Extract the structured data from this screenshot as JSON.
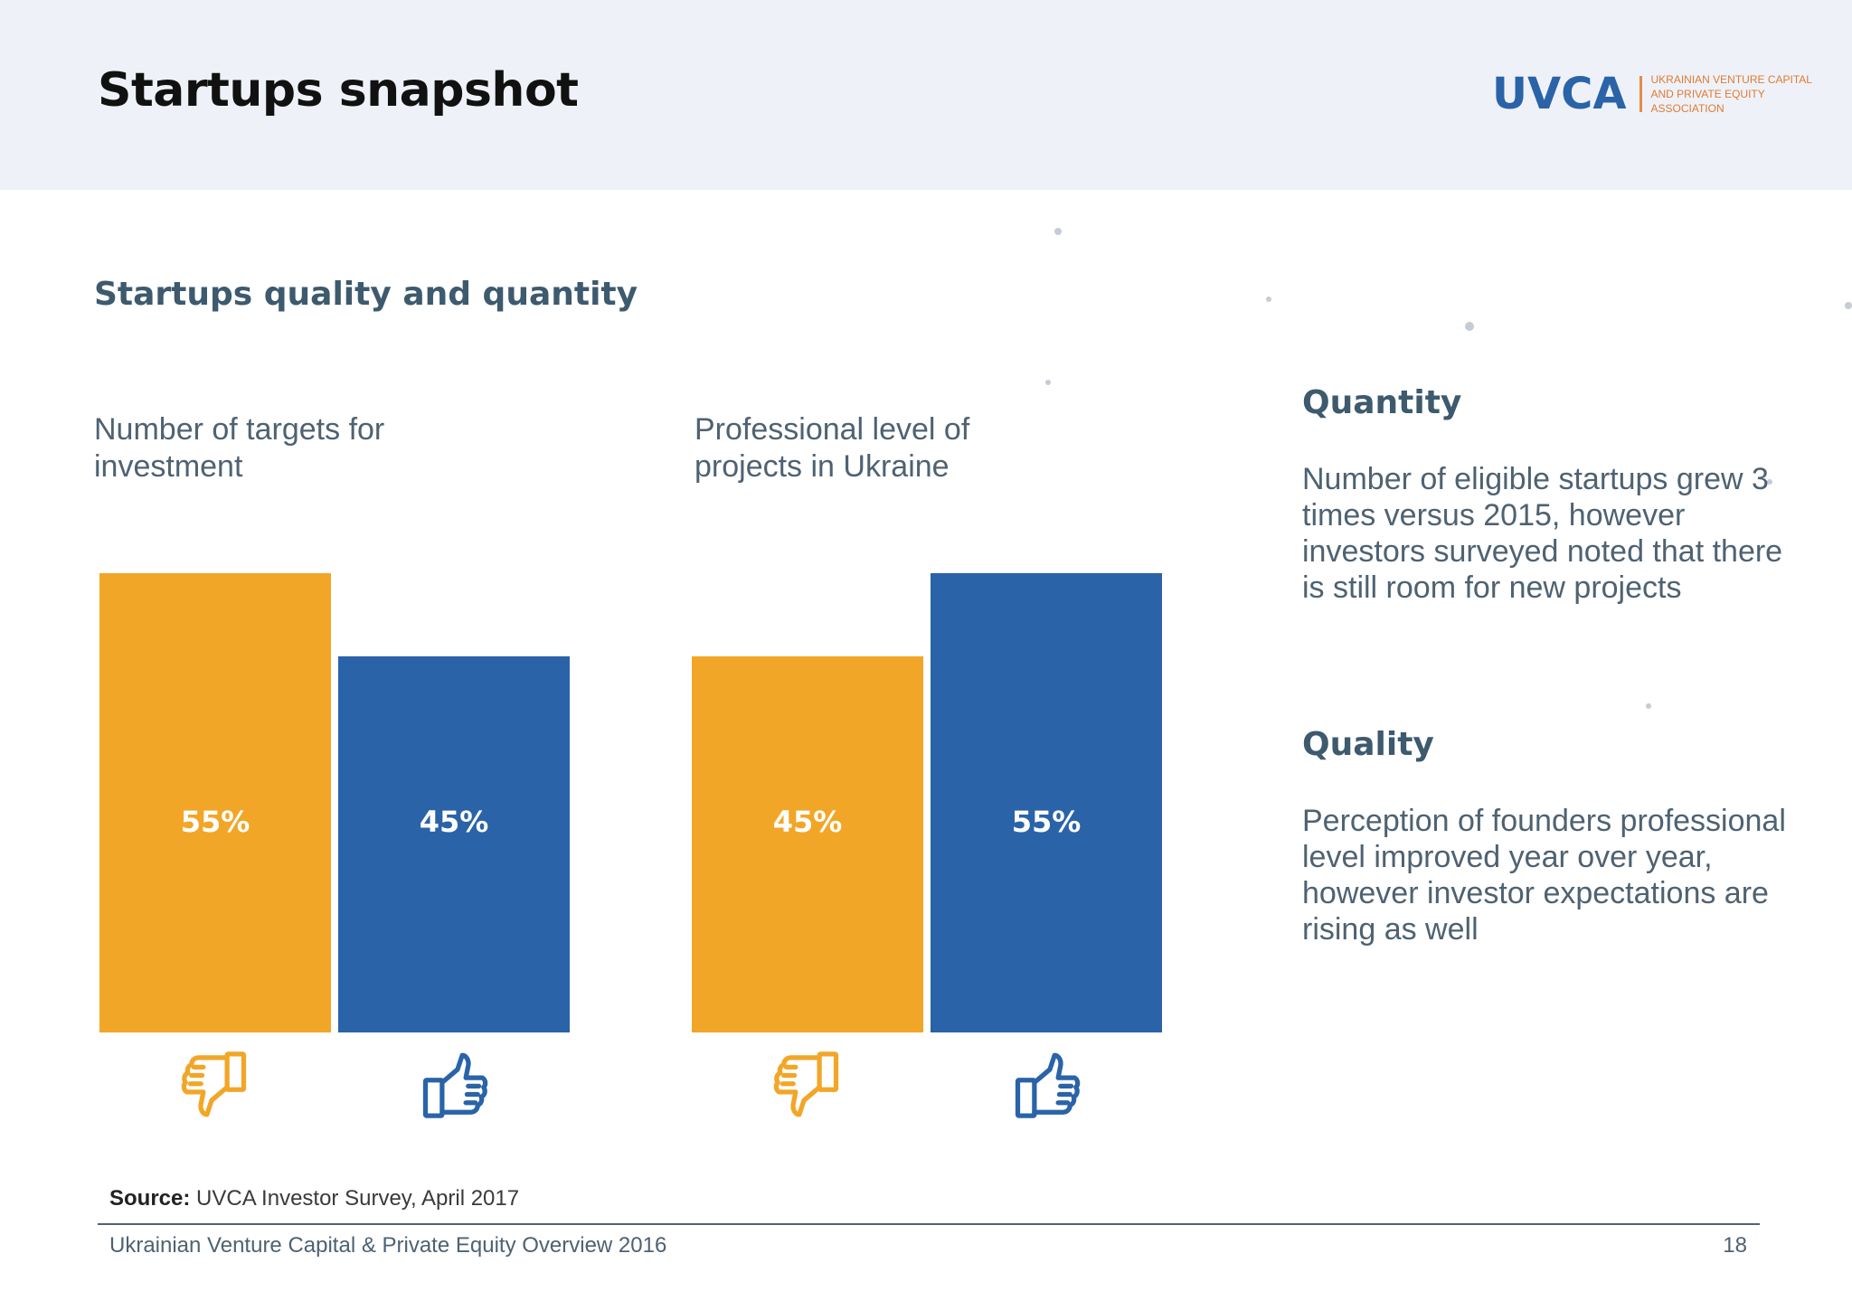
{
  "header": {
    "title": "Startups snapshot",
    "logo_text": "UVCA",
    "logo_subtitle": "UKRAINIAN VENTURE CAPITAL AND PRIVATE EQUITY ASSOCIATION"
  },
  "subtitle": "Startups quality and quantity",
  "colors": {
    "negative": "#f2a628",
    "positive": "#2a63a8"
  },
  "chart_data": [
    {
      "type": "bar",
      "title": "Number of targets for investment",
      "categories": [
        "thumbs-down",
        "thumbs-up"
      ],
      "values": [
        55,
        45
      ],
      "value_labels": [
        "55%",
        "45%"
      ],
      "ylim": [
        0,
        55
      ]
    },
    {
      "type": "bar",
      "title": "Professional level of projects in Ukraine",
      "categories": [
        "thumbs-down",
        "thumbs-up"
      ],
      "values": [
        45,
        55
      ],
      "value_labels": [
        "45%",
        "55%"
      ],
      "ylim": [
        0,
        55
      ]
    }
  ],
  "side": {
    "quantity_heading": "Quantity",
    "quantity_text": "Number of eligible startups grew 3 times versus 2015, however investors surveyed noted that there is still  room for new projects",
    "quality_heading": "Quality",
    "quality_text": "Perception of founders professional level improved year over year, however investor expectations are rising as well"
  },
  "footer": {
    "source_label": "Source:",
    "source_text": "UVCA Investor Survey, April 2017",
    "report_title": "Ukrainian Venture Capital & Private Equity Overview 2016",
    "page_number": "18"
  },
  "icons": {
    "down": "thumbs-down-icon",
    "up": "thumbs-up-icon"
  }
}
